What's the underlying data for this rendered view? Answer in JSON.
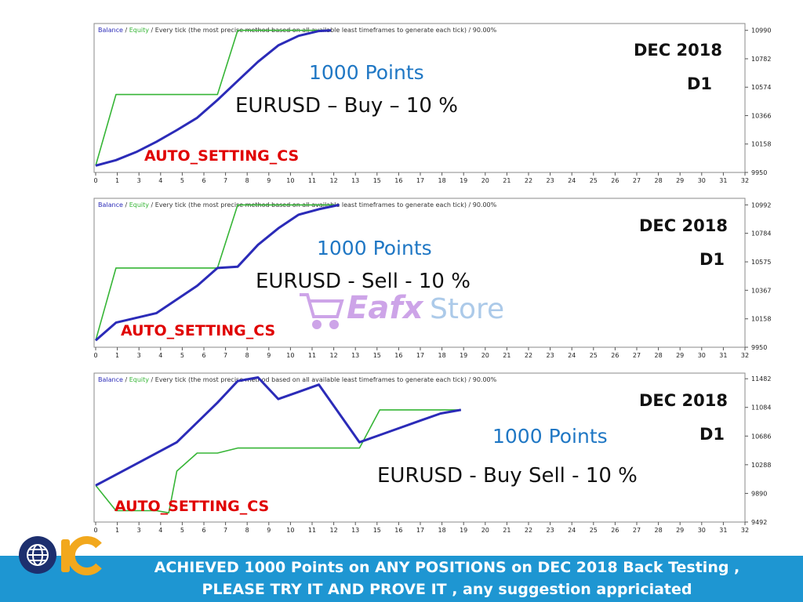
{
  "colors": {
    "balance": "#2b2bb8",
    "equity": "#36b536",
    "accent": "#1f77c4",
    "auto": "#e00000",
    "footer_bg": "#1e96d2"
  },
  "header_parts": {
    "balance": "Balance",
    "sep": " / ",
    "equity": "Equity",
    "rest": " / Every tick (the most precise method based on all available least timeframes to generate each tick) / 90.00%"
  },
  "charts": [
    {
      "overlay": {
        "points": "1000 Points",
        "pair": "EURUSD – Buy – 10 %",
        "period": "DEC 2018",
        "timeframe": "D1",
        "setting": "AUTO_SETTING_CS"
      }
    },
    {
      "overlay": {
        "points": "1000 Points",
        "pair": "EURUSD - Sell  - 10 %",
        "period": "DEC 2018",
        "timeframe": "D1",
        "setting": "AUTO_SETTING_CS"
      }
    },
    {
      "overlay": {
        "points": "1000 Points",
        "pair": "EURUSD - Buy Sell - 10 %",
        "period": "DEC 2018",
        "timeframe": "D1",
        "setting": "AUTO_SETTING_CS"
      }
    }
  ],
  "chart_data": [
    {
      "type": "line",
      "xlim": [
        0,
        32
      ],
      "ylim": [
        9950,
        11040
      ],
      "yticks": [
        "10990",
        "10782",
        "10574",
        "10366",
        "10158",
        "9950"
      ],
      "xticks": [
        "0",
        "1",
        "3",
        "4",
        "5",
        "6",
        "7",
        "8",
        "9",
        "10",
        "11",
        "12",
        "13",
        "15",
        "16",
        "17",
        "18",
        "19",
        "20",
        "21",
        "22",
        "23",
        "24",
        "25",
        "26",
        "27",
        "28",
        "29",
        "30",
        "31",
        "32"
      ],
      "series": [
        {
          "name": "Balance",
          "points": [
            [
              0,
              10000
            ],
            [
              1,
              10040
            ],
            [
              2,
              10100
            ],
            [
              3,
              10175
            ],
            [
              4,
              10260
            ],
            [
              5,
              10350
            ],
            [
              6,
              10480
            ],
            [
              7,
              10620
            ],
            [
              8,
              10760
            ],
            [
              9,
              10880
            ],
            [
              10,
              10950
            ],
            [
              11,
              10985
            ],
            [
              11.6,
              10990
            ]
          ]
        },
        {
          "name": "Equity",
          "points": [
            [
              0,
              10000
            ],
            [
              1,
              10520
            ],
            [
              5,
              10520
            ],
            [
              6,
              10520
            ],
            [
              7,
              10990
            ],
            [
              11.6,
              10990
            ]
          ]
        }
      ]
    },
    {
      "type": "line",
      "xlim": [
        0,
        32
      ],
      "ylim": [
        9950,
        11040
      ],
      "yticks": [
        "10992",
        "10784",
        "10575",
        "10367",
        "10158",
        "9950"
      ],
      "xticks": [
        "0",
        "1",
        "3",
        "4",
        "5",
        "6",
        "7",
        "8",
        "9",
        "10",
        "11",
        "12",
        "13",
        "15",
        "16",
        "17",
        "18",
        "19",
        "20",
        "21",
        "22",
        "23",
        "24",
        "25",
        "26",
        "27",
        "28",
        "29",
        "30",
        "31",
        "32"
      ],
      "series": [
        {
          "name": "Balance",
          "points": [
            [
              0,
              10000
            ],
            [
              1,
              10130
            ],
            [
              3,
              10200
            ],
            [
              4,
              10300
            ],
            [
              5,
              10400
            ],
            [
              6,
              10530
            ],
            [
              7,
              10540
            ],
            [
              8,
              10700
            ],
            [
              9,
              10820
            ],
            [
              10,
              10920
            ],
            [
              11,
              10960
            ],
            [
              12,
              10992
            ]
          ]
        },
        {
          "name": "Equity",
          "points": [
            [
              0,
              10000
            ],
            [
              1,
              10530
            ],
            [
              6,
              10530
            ],
            [
              7,
              10992
            ],
            [
              12,
              10992
            ]
          ]
        }
      ]
    },
    {
      "type": "line",
      "xlim": [
        0,
        32
      ],
      "ylim": [
        9492,
        11560
      ],
      "yticks": [
        "11482",
        "11084",
        "10686",
        "10288",
        "9890",
        "9492"
      ],
      "xticks": [
        "0",
        "1",
        "3",
        "4",
        "5",
        "6",
        "7",
        "8",
        "9",
        "10",
        "11",
        "12",
        "13",
        "15",
        "16",
        "17",
        "18",
        "19",
        "20",
        "21",
        "22",
        "23",
        "24",
        "25",
        "26",
        "27",
        "28",
        "29",
        "30",
        "31",
        "32"
      ],
      "series": [
        {
          "name": "Balance",
          "points": [
            [
              0,
              10000
            ],
            [
              2,
              10300
            ],
            [
              4,
              10600
            ],
            [
              6,
              11150
            ],
            [
              7,
              11450
            ],
            [
              8,
              11500
            ],
            [
              9,
              11200
            ],
            [
              10,
              11300
            ],
            [
              11,
              11400
            ],
            [
              13,
              10600
            ],
            [
              14,
              10700
            ],
            [
              16,
              10900
            ],
            [
              17,
              11000
            ],
            [
              18,
              11050
            ]
          ]
        },
        {
          "name": "Equity",
          "points": [
            [
              0,
              10000
            ],
            [
              1,
              9650
            ],
            [
              3,
              9650
            ],
            [
              3.6,
              9620
            ],
            [
              4,
              10200
            ],
            [
              5,
              10450
            ],
            [
              6,
              10450
            ],
            [
              7,
              10520
            ],
            [
              13,
              10520
            ],
            [
              14,
              11050
            ],
            [
              18,
              11050
            ]
          ]
        }
      ]
    }
  ],
  "footer": {
    "line1": "ACHIEVED 1000 Points on  ANY POSITIONS on DEC 2018 Back    Testing ,",
    "line2": "PLEASE TRY IT  AND PROVE IT  , any suggestion appriciated"
  },
  "watermark": {
    "brand_a": "Eafx",
    "brand_b": "Store"
  }
}
